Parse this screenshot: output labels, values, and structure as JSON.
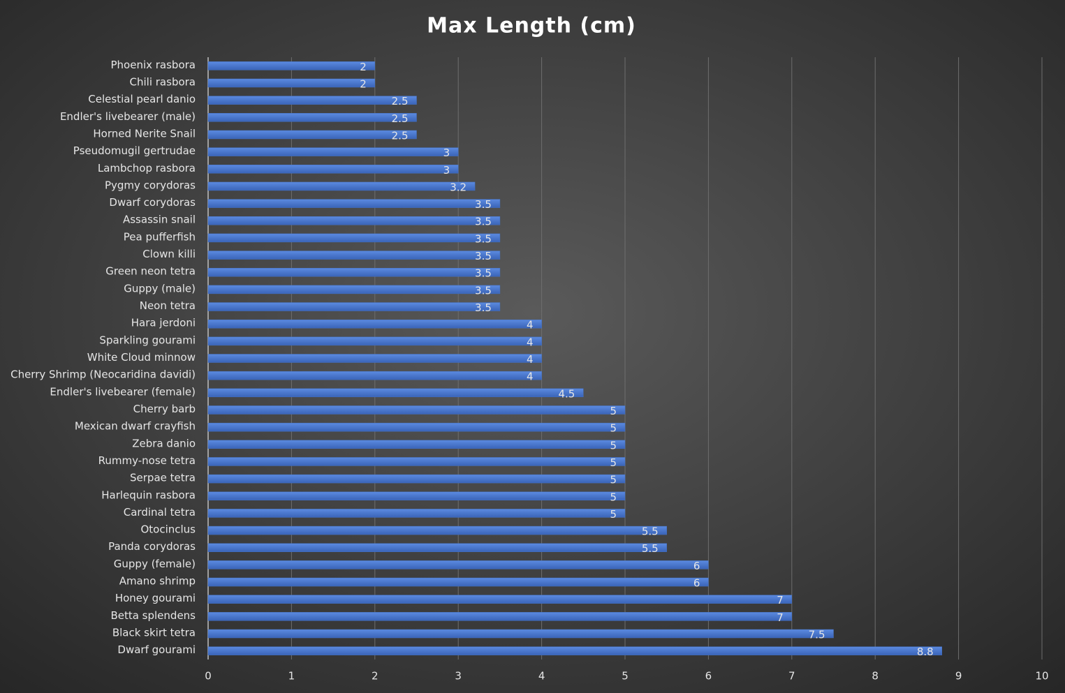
{
  "chart_data": {
    "type": "barh",
    "title": "Max Length (cm)",
    "categories": [
      "Phoenix rasbora",
      "Chili rasbora",
      "Celestial pearl danio",
      "Endler's livebearer (male)",
      "Horned Nerite Snail",
      "Pseudomugil gertrudae",
      "Lambchop rasbora",
      "Pygmy corydoras",
      "Dwarf corydoras",
      "Assassin snail",
      "Pea pufferfish",
      "Clown killi",
      "Green neon tetra",
      "Guppy (male)",
      "Neon tetra",
      "Hara jerdoni",
      "Sparkling gourami",
      "White Cloud minnow",
      "Cherry Shrimp (Neocaridina davidi)",
      "Endler's livebearer (female)",
      "Cherry barb",
      "Mexican dwarf crayfish",
      "Zebra danio",
      "Rummy-nose tetra",
      "Serpae tetra",
      "Harlequin rasbora",
      "Cardinal tetra",
      "Otocinclus",
      "Panda corydoras",
      "Guppy (female)",
      "Amano shrimp",
      "Honey gourami",
      "Betta splendens",
      "Black skirt tetra",
      "Dwarf gourami"
    ],
    "values": [
      2,
      2,
      2.5,
      2.5,
      2.5,
      3,
      3,
      3.2,
      3.5,
      3.5,
      3.5,
      3.5,
      3.5,
      3.5,
      3.5,
      4,
      4,
      4,
      4,
      4.5,
      5,
      5,
      5,
      5,
      5,
      5,
      5,
      5.5,
      5.5,
      6,
      6,
      7,
      7,
      7.5,
      8.8
    ],
    "color": "#4472c4",
    "xlim": [
      0,
      10
    ],
    "xticks": [
      0,
      1,
      2,
      3,
      4,
      5,
      6,
      7,
      8,
      9,
      10
    ],
    "grid": true,
    "data_labels": true
  }
}
